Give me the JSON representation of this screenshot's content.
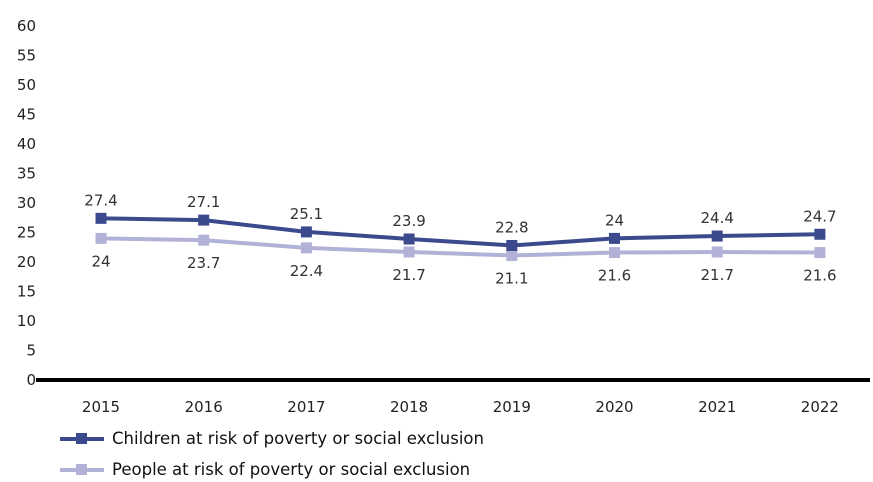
{
  "chart_data": {
    "type": "line",
    "categories": [
      "2015",
      "2016",
      "2017",
      "2018",
      "2019",
      "2020",
      "2021",
      "2022"
    ],
    "ylim": [
      0,
      60
    ],
    "yticks": [
      0,
      5,
      10,
      15,
      20,
      25,
      30,
      35,
      40,
      45,
      50,
      55,
      60
    ],
    "grid": false,
    "legend_position": "bottom-left",
    "series": [
      {
        "name": "Children at risk of poverty or social exclusion",
        "values": [
          27.4,
          27.1,
          25.1,
          23.9,
          22.8,
          24,
          24.4,
          24.7
        ],
        "color": "#3b4a8c",
        "marker": "square",
        "label_position": "above"
      },
      {
        "name": "People at risk of poverty or social exclusion",
        "values": [
          24,
          23.7,
          22.4,
          21.7,
          21.1,
          21.6,
          21.7,
          21.6
        ],
        "color": "#b2b2d8",
        "marker": "square",
        "label_position": "below"
      }
    ]
  }
}
